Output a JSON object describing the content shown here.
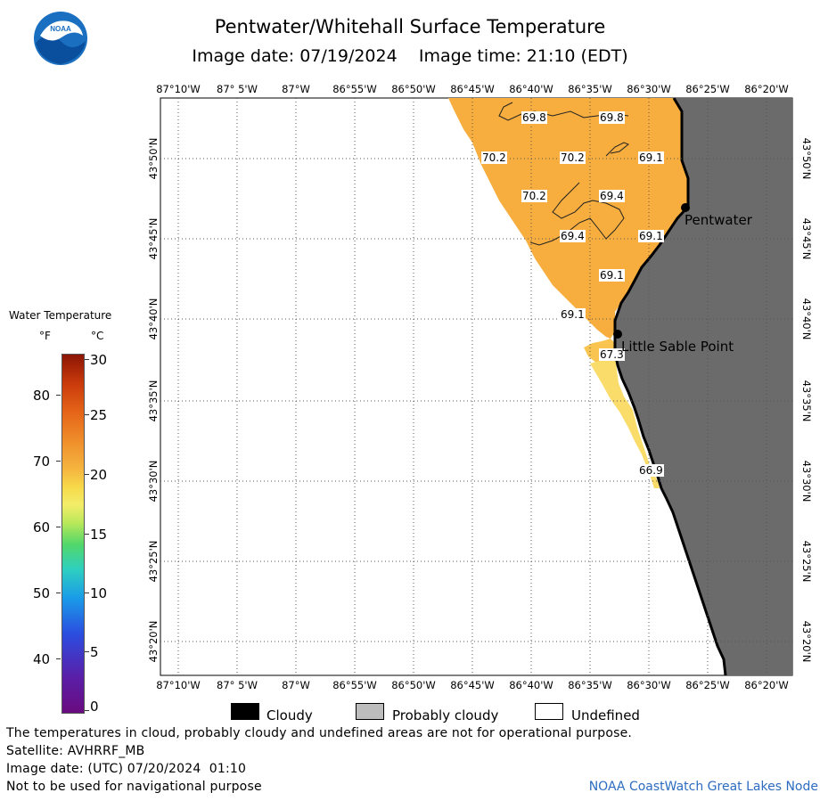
{
  "header": {
    "title": "Pentwater/Whitehall Surface Temperature",
    "subtitle": "Image date: 07/19/2024    Image time: 21:10 (EDT)",
    "logo_text": "NOAA"
  },
  "map": {
    "lon_labels": [
      "87°10'W",
      "87° 5'W",
      "87°W",
      "86°55'W",
      "86°50'W",
      "86°45'W",
      "86°40'W",
      "86°35'W",
      "86°30'W",
      "86°25'W",
      "86°20'W"
    ],
    "lat_labels": [
      "43°50'N",
      "43°45'N",
      "43°40'N",
      "43°35'N",
      "43°30'N",
      "43°25'N",
      "43°20'N"
    ],
    "places": [
      {
        "name": "Pentwater"
      },
      {
        "name": "Little Sable Point"
      }
    ],
    "isotherm_labels": [
      "69.8",
      "69.8",
      "70.2",
      "70.2",
      "69.1",
      "70.2",
      "69.4",
      "69.4",
      "69.1",
      "69.1",
      "69.1",
      "67.3",
      "66.9"
    ],
    "colors": {
      "land": "#6b6b6b",
      "water_warm": "#f7ae3e",
      "water_cooler": "#f9c04a",
      "water_cool": "#fadc6a",
      "coastline": "#000000"
    }
  },
  "legend": {
    "title": "Water Temperature",
    "unit_f": "°F",
    "unit_c": "°C",
    "f_ticks": [
      "80",
      "70",
      "60",
      "50",
      "40"
    ],
    "c_ticks": [
      "30",
      "25",
      "20",
      "15",
      "10",
      "5",
      "0"
    ]
  },
  "key": [
    {
      "label": "Cloudy",
      "color": "#000000"
    },
    {
      "label": "Probably cloudy",
      "color": "#bdbdbd"
    },
    {
      "label": "Undefined",
      "color": "#ffffff"
    }
  ],
  "footer": {
    "line1": "The temperatures in cloud, probably cloudy and undefined areas are not for operational purpose.",
    "line2": "Satellite: AVHRRF_MB",
    "line3": "Image date: (UTC) 07/20/2024  01:10",
    "line4": "Not to be used for navigational purpose",
    "credit": "NOAA CoastWatch Great Lakes Node"
  }
}
